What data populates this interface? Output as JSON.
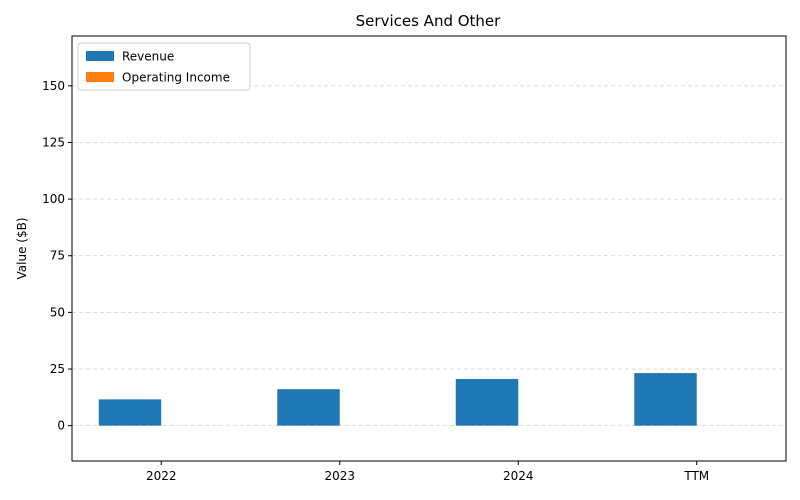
{
  "chart_data": {
    "type": "bar",
    "title": "Services And Other",
    "xlabel": "",
    "ylabel": "Value ($B)",
    "categories": [
      "2022",
      "2023",
      "2024",
      "TTM"
    ],
    "series": [
      {
        "name": "Revenue",
        "values": [
          11.6,
          16.1,
          20.6,
          23.2
        ],
        "color": "#1f77b4"
      },
      {
        "name": "Operating Income",
        "values": [
          0,
          0,
          0,
          0
        ],
        "color": "#ff7f0e"
      }
    ],
    "ylim": [
      -15.6,
      172
    ],
    "yticks": [
      0,
      25,
      50,
      75,
      100,
      125,
      150
    ],
    "grid": "y-dashed",
    "legend_position": "top-left"
  }
}
